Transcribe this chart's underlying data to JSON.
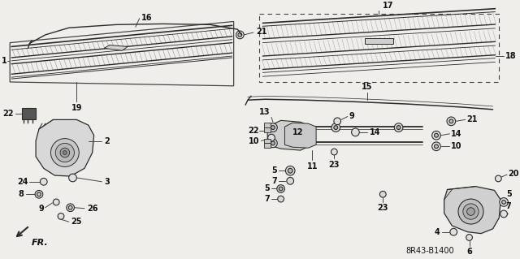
{
  "bg_color": "#f0eeeb",
  "diagram_color": "#2a2a2a",
  "label_color": "#111111",
  "line_color": "#444444",
  "stamp_text": "8R43-B1400",
  "fr_label": "FR."
}
